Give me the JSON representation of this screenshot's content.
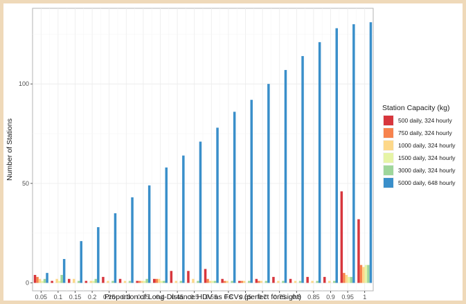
{
  "chart_data": {
    "type": "bar",
    "xlabel": "Proportion of Long-Distance HDV as FCVs (perfect foresight)",
    "ylabel": "Number of Stations",
    "categories": [
      "0.05",
      "0.1",
      "0.15",
      "0.2",
      "0.25",
      "0.3",
      "0.35",
      "0.4",
      "0.45",
      "0.5",
      "0.55",
      "0.6",
      "0.65",
      "0.7",
      "0.75",
      "0.8",
      "0.85",
      "0.9",
      "0.95",
      "1"
    ],
    "ylim": [
      -4,
      138
    ],
    "yticks": [
      0,
      50,
      100
    ],
    "grid": true,
    "legend": {
      "title": "Station Capacity (kg)",
      "position": "right"
    },
    "series": [
      {
        "name": "500 daily, 324 hourly",
        "color": "#d7363d",
        "values": [
          4,
          1,
          2,
          1,
          3,
          2,
          1,
          2,
          6,
          6,
          7,
          2,
          1,
          2,
          3,
          2,
          3,
          3,
          46,
          32
        ]
      },
      {
        "name": "750 daily, 324 hourly",
        "color": "#f7834e",
        "values": [
          3,
          0,
          0,
          0,
          0,
          0,
          1,
          2,
          0,
          0,
          2,
          1,
          1,
          1,
          0,
          0,
          0,
          0,
          5,
          9
        ]
      },
      {
        "name": "1000 daily, 324 hourly",
        "color": "#fdd88a",
        "values": [
          2,
          2,
          2,
          1,
          1,
          1,
          1,
          2,
          1,
          2,
          1,
          1,
          1,
          1,
          1,
          1,
          1,
          1,
          4,
          8
        ]
      },
      {
        "name": "1500 daily, 324 hourly",
        "color": "#e6f4a6",
        "values": [
          1,
          1,
          0,
          1,
          0,
          0,
          1,
          1,
          0,
          0,
          1,
          0,
          0,
          0,
          0,
          0,
          0,
          0,
          3,
          9
        ]
      },
      {
        "name": "3000 daily, 324 hourly",
        "color": "#9fd69b",
        "values": [
          2,
          4,
          1,
          2,
          1,
          1,
          2,
          1,
          1,
          1,
          1,
          1,
          1,
          1,
          1,
          1,
          1,
          1,
          3,
          9
        ]
      },
      {
        "name": "5000 daily, 648 hourly",
        "color": "#3a8fca",
        "values": [
          5,
          12,
          21,
          28,
          35,
          43,
          49,
          58,
          64,
          71,
          78,
          86,
          92,
          100,
          107,
          114,
          121,
          128,
          130,
          131
        ]
      }
    ]
  }
}
